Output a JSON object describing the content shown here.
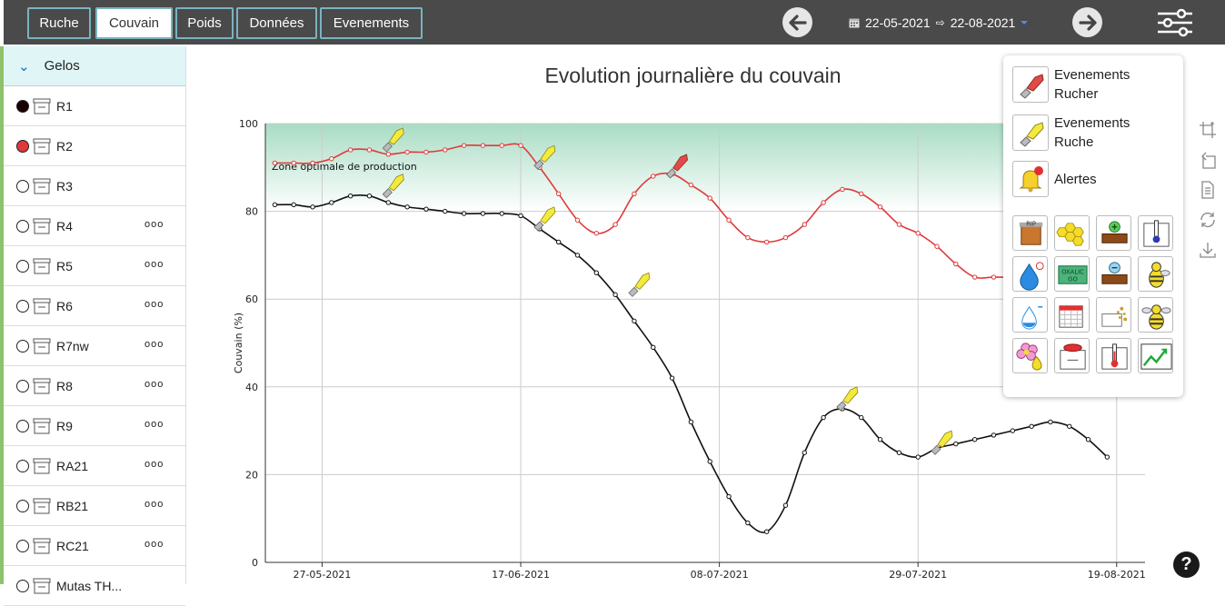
{
  "tabs": [
    {
      "label": "Ruche",
      "active": false
    },
    {
      "label": "Couvain",
      "active": true
    },
    {
      "label": "Poids",
      "active": false
    },
    {
      "label": "Données",
      "active": false
    },
    {
      "label": "Evenements",
      "active": false
    }
  ],
  "date_range": {
    "start": "22-05-2021",
    "separator": "⇨",
    "end": "22-08-2021"
  },
  "sidebar": {
    "group": "Gelos",
    "items": [
      {
        "label": "R1",
        "radio_fill": "#1a0000",
        "dots": ""
      },
      {
        "label": "R2",
        "radio_fill": "#e0393b",
        "dots": ""
      },
      {
        "label": "R3",
        "radio_fill": "",
        "dots": ""
      },
      {
        "label": "R4",
        "radio_fill": "",
        "dots": "ooo"
      },
      {
        "label": "R5",
        "radio_fill": "",
        "dots": "ooo"
      },
      {
        "label": "R6",
        "radio_fill": "",
        "dots": "ooo"
      },
      {
        "label": "R7nw",
        "radio_fill": "",
        "dots": "ooo"
      },
      {
        "label": "R8",
        "radio_fill": "",
        "dots": "ooo"
      },
      {
        "label": "R9",
        "radio_fill": "",
        "dots": "ooo"
      },
      {
        "label": "RA21",
        "radio_fill": "",
        "dots": "ooo"
      },
      {
        "label": "RB21",
        "radio_fill": "",
        "dots": "ooo"
      },
      {
        "label": "RC21",
        "radio_fill": "",
        "dots": "ooo"
      },
      {
        "label": "Mutas TH...",
        "radio_fill": "",
        "dots": ""
      }
    ]
  },
  "popup": {
    "items": [
      {
        "label_line1": "Evenements",
        "label_line2": "Rucher",
        "icon": "red-hive-tool-icon"
      },
      {
        "label_line1": "Evenements",
        "label_line2": "Ruche",
        "icon": "yellow-hive-tool-icon"
      },
      {
        "label_line1": "Alertes",
        "label_line2": "",
        "icon": "bell-alert-icon"
      }
    ],
    "grid_icons": [
      "rip-hive-icon",
      "honeycomb-icon",
      "add-super-icon",
      "thermometer-hive-icon",
      "water-drop-plus-icon",
      "oxalic-go-icon",
      "remove-super-icon",
      "queen-bee-icon",
      "water-drop-minus-icon",
      "calendar-icon",
      "pollen-feeding-icon",
      "swarm-bee-icon",
      "flower-pollen-icon",
      "feeder-hive-icon",
      "temperature-hive-icon",
      "trend-chart-icon"
    ],
    "oxalic_text": "OXALIC GO",
    "rip_text": "RIP"
  },
  "chart_data": {
    "type": "line",
    "title": "Evolution journalière du couvain",
    "ylabel": "Couvain (%)",
    "xlabel": "",
    "ylim": [
      0,
      100
    ],
    "yticks": [
      0,
      20,
      40,
      60,
      80,
      100
    ],
    "xticks": [
      "27-05-2021",
      "17-06-2021",
      "08-07-2021",
      "29-07-2021",
      "19-08-2021"
    ],
    "grid": true,
    "zone_label": "Zone optimale de production",
    "zone_range": [
      80,
      100
    ],
    "series": [
      {
        "color": "#e0393b",
        "x": [
          "22-05-2021",
          "24-05-2021",
          "26-05-2021",
          "28-05-2021",
          "30-05-2021",
          "01-06-2021",
          "03-06-2021",
          "05-06-2021",
          "07-06-2021",
          "09-06-2021",
          "11-06-2021",
          "13-06-2021",
          "15-06-2021",
          "17-06-2021",
          "19-06-2021",
          "21-06-2021",
          "23-06-2021",
          "25-06-2021",
          "27-06-2021",
          "29-06-2021",
          "01-07-2021",
          "03-07-2021",
          "05-07-2021",
          "07-07-2021",
          "09-07-2021",
          "11-07-2021",
          "13-07-2021",
          "15-07-2021",
          "17-07-2021",
          "19-07-2021",
          "21-07-2021",
          "23-07-2021",
          "25-07-2021",
          "27-07-2021",
          "29-07-2021",
          "31-07-2021",
          "02-08-2021",
          "04-08-2021",
          "06-08-2021",
          "08-08-2021",
          "10-08-2021"
        ],
        "values": [
          91,
          91,
          91,
          92,
          94,
          94,
          93,
          93.5,
          93.5,
          94,
          95,
          95,
          95,
          95,
          90,
          84,
          78,
          75,
          77,
          84,
          88,
          88.5,
          86,
          83,
          78,
          74,
          73,
          74,
          77,
          82,
          85,
          84,
          81,
          77,
          75,
          72,
          68,
          65,
          65,
          65,
          65
        ]
      },
      {
        "color": "#111111",
        "x": [
          "22-05-2021",
          "24-05-2021",
          "26-05-2021",
          "28-05-2021",
          "30-05-2021",
          "01-06-2021",
          "03-06-2021",
          "05-06-2021",
          "07-06-2021",
          "09-06-2021",
          "11-06-2021",
          "13-06-2021",
          "15-06-2021",
          "17-06-2021",
          "19-06-2021",
          "21-06-2021",
          "23-06-2021",
          "25-06-2021",
          "27-06-2021",
          "29-06-2021",
          "01-07-2021",
          "03-07-2021",
          "05-07-2021",
          "07-07-2021",
          "09-07-2021",
          "11-07-2021",
          "13-07-2021",
          "15-07-2021",
          "17-07-2021",
          "19-07-2021",
          "21-07-2021",
          "23-07-2021",
          "25-07-2021",
          "27-07-2021",
          "29-07-2021",
          "31-07-2021",
          "02-08-2021",
          "04-08-2021",
          "06-08-2021",
          "08-08-2021",
          "10-08-2021",
          "12-08-2021",
          "14-08-2021",
          "16-08-2021",
          "18-08-2021"
        ],
        "values": [
          81.5,
          81.5,
          81,
          82,
          83.5,
          83.5,
          82,
          81,
          80.5,
          80,
          79.5,
          79.5,
          79.5,
          79,
          76,
          73,
          70,
          66,
          61,
          55,
          49,
          42,
          32,
          23,
          15,
          9,
          7,
          13,
          25,
          33,
          35,
          33,
          28,
          25,
          24,
          26,
          27,
          28,
          29,
          30,
          31,
          32,
          31,
          28,
          24
        ]
      }
    ],
    "event_markers": [
      {
        "date": "03-06-2021",
        "value": 94,
        "kind": "hive"
      },
      {
        "date": "19-06-2021",
        "value": 90,
        "kind": "hive"
      },
      {
        "date": "03-07-2021",
        "value": 88,
        "kind": "apiary"
      },
      {
        "date": "03-06-2021",
        "value": 83.5,
        "kind": "hive"
      },
      {
        "date": "19-06-2021",
        "value": 76,
        "kind": "hive"
      },
      {
        "date": "29-06-2021",
        "value": 61,
        "kind": "hive"
      },
      {
        "date": "21-07-2021",
        "value": 35,
        "kind": "hive"
      },
      {
        "date": "31-07-2021",
        "value": 25,
        "kind": "hive"
      }
    ]
  }
}
